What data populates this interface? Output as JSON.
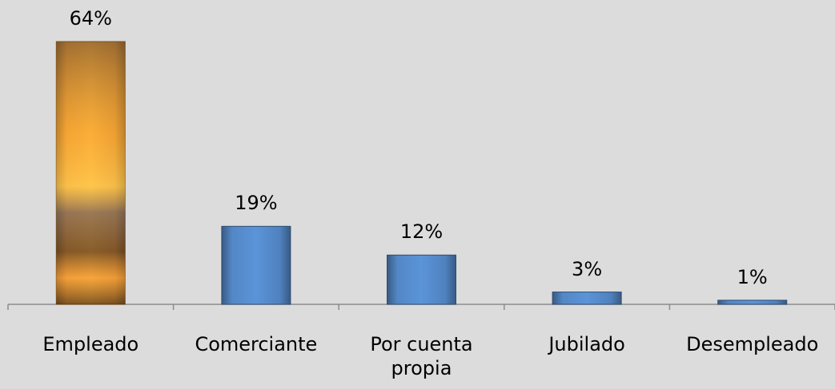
{
  "chart_data": {
    "type": "bar",
    "categories": [
      "Empleado",
      "Comerciante",
      "Por cuenta propia",
      "Jubilado",
      "Desempleado"
    ],
    "values": [
      64,
      19,
      12,
      3,
      1
    ],
    "value_labels": [
      "64%",
      "19%",
      "12%",
      "3%",
      "1%"
    ],
    "colors": [
      "#e8952e",
      "#4f81bd",
      "#4f81bd",
      "#4f81bd",
      "#4f81bd"
    ]
  }
}
